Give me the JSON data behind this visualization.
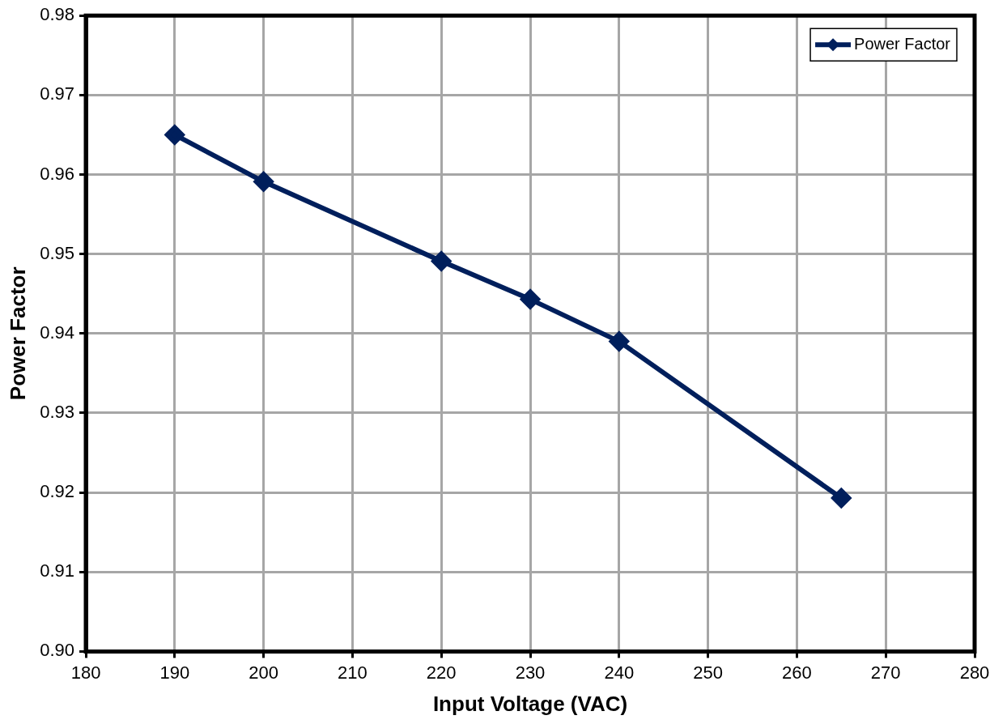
{
  "chart_data": {
    "type": "line",
    "xlabel": "Input Voltage (VAC)",
    "ylabel": "Power Factor",
    "x": [
      190,
      200,
      220,
      230,
      240,
      265
    ],
    "series": [
      {
        "name": "Power Factor",
        "color": "#001f5c",
        "values": [
          0.965,
          0.9591,
          0.9491,
          0.9443,
          0.939,
          0.9193
        ]
      }
    ],
    "xlim": [
      180,
      280
    ],
    "xticks": [
      180,
      190,
      200,
      210,
      220,
      230,
      240,
      250,
      260,
      270,
      280
    ],
    "ylim": [
      0.9,
      0.98
    ],
    "yticks": [
      {
        "value": 0.9,
        "label": "0.90"
      },
      0.91,
      0.92,
      0.93,
      0.94,
      0.95,
      0.96,
      0.97,
      0.98
    ],
    "grid": true,
    "legend": "top right",
    "marker": "diamond",
    "line_style": "solid"
  }
}
